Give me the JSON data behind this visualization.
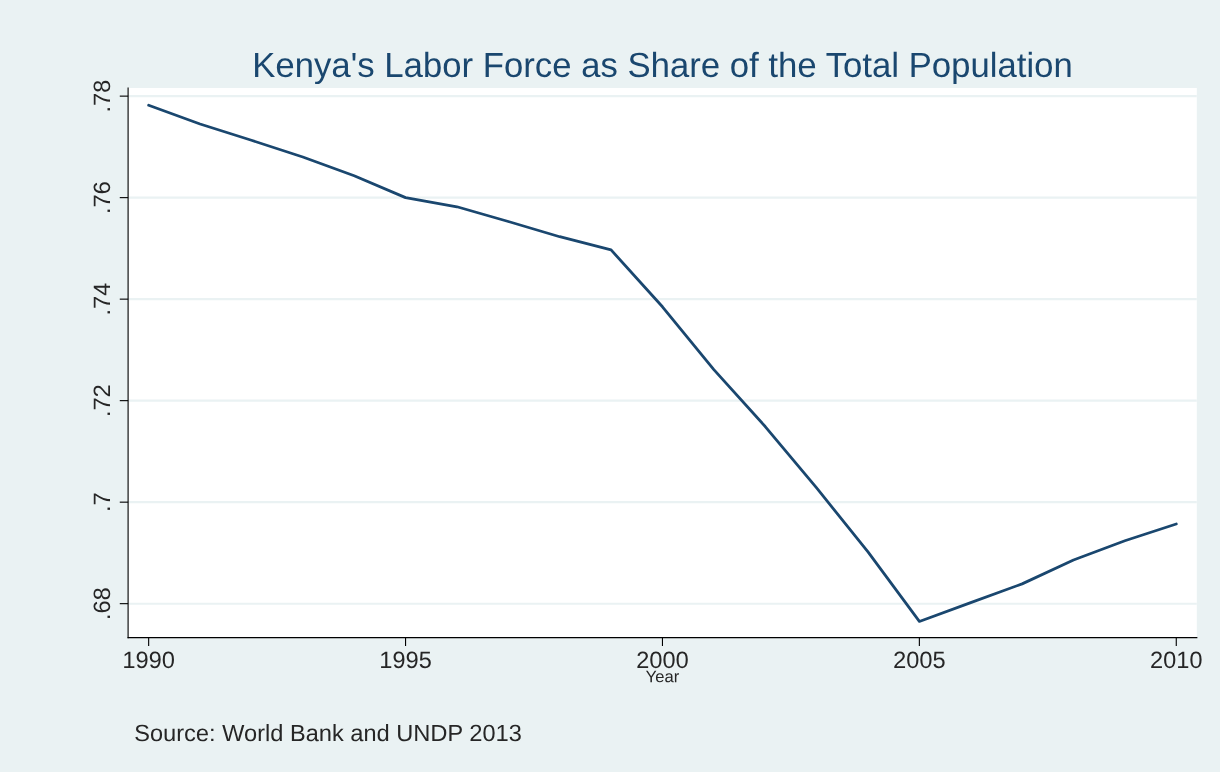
{
  "chart_data": {
    "type": "line",
    "title": "Kenya's Labor Force as Share of the Total Population",
    "xlabel": "Year",
    "x": [
      1990,
      1991,
      1992,
      1993,
      1994,
      1995,
      1996,
      1997,
      1998,
      1999,
      2000,
      2001,
      2002,
      2003,
      2004,
      2005,
      2006,
      2007,
      2008,
      2009,
      2010
    ],
    "series": [
      {
        "color": "#1a476f",
        "values": [
          0.7782,
          0.7745,
          0.7713,
          0.768,
          0.7643,
          0.76,
          0.7582,
          0.7553,
          0.7523,
          0.7497,
          0.7385,
          0.7261,
          0.7149,
          0.7028,
          0.6902,
          0.6765,
          0.6802,
          0.6839,
          0.6886,
          0.6924,
          0.6957
        ]
      }
    ],
    "xlim": [
      1989.6,
      2010.4
    ],
    "ylim": [
      0.6733,
      0.7816
    ],
    "xticks": [
      1990,
      1995,
      2000,
      2005,
      2010
    ],
    "yticks": [
      {
        "value": 0.68,
        "label": ".68"
      },
      {
        "value": 0.7,
        "label": ".7"
      },
      {
        "value": 0.72,
        "label": ".72"
      },
      {
        "value": 0.74,
        "label": ".74"
      },
      {
        "value": 0.76,
        "label": ".76"
      },
      {
        "value": 0.78,
        "label": ".78"
      }
    ],
    "grid": "y",
    "marker": "none",
    "line_style": "solid",
    "annotations": [
      "Source: World Bank and UNDP 2013"
    ]
  }
}
